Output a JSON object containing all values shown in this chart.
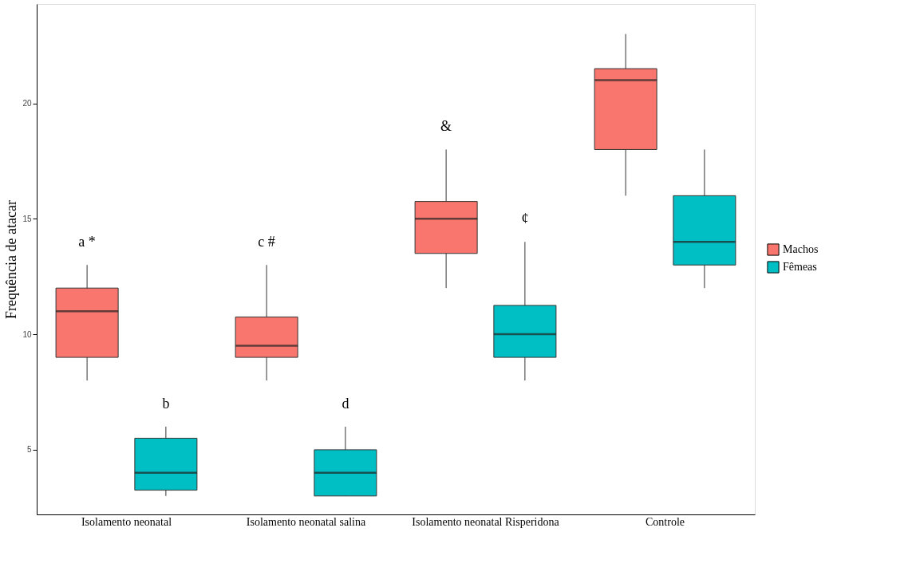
{
  "chart_data": {
    "type": "box",
    "ylabel": "Frequência de atacar",
    "categories": [
      "Isolamento neonatal",
      "Isolamento neonatal salina",
      "Isolamento neonatal Risperidona",
      "Controle"
    ],
    "series": [
      {
        "name": "Machos",
        "color": "#f8766d",
        "boxes": [
          {
            "low": 8,
            "q1": 9,
            "median": 11,
            "q3": 12,
            "high": 13
          },
          {
            "low": 8,
            "q1": 9,
            "median": 9.5,
            "q3": 10.75,
            "high": 13
          },
          {
            "low": 12,
            "q1": 13.5,
            "median": 15,
            "q3": 15.75,
            "high": 18
          },
          {
            "low": 16,
            "q1": 18,
            "median": 21,
            "q3": 21.5,
            "high": 23
          }
        ]
      },
      {
        "name": "Fêmeas",
        "color": "#00bfc4",
        "boxes": [
          {
            "low": 3,
            "q1": 3.25,
            "median": 4,
            "q3": 5.5,
            "high": 6
          },
          {
            "low": 3,
            "q1": 3,
            "median": 4,
            "q3": 5,
            "high": 6
          },
          {
            "low": 8,
            "q1": 9,
            "median": 10,
            "q3": 11.25,
            "high": 14
          },
          {
            "low": 12,
            "q1": 13,
            "median": 14,
            "q3": 16,
            "high": 18
          }
        ]
      }
    ],
    "ylim": [
      2.2,
      24.3
    ],
    "yticks": [
      5,
      10,
      15,
      20
    ],
    "grid": false,
    "legend": "right",
    "annotations": [
      "a *",
      "b",
      "c #",
      "d",
      "&",
      "¢"
    ]
  }
}
